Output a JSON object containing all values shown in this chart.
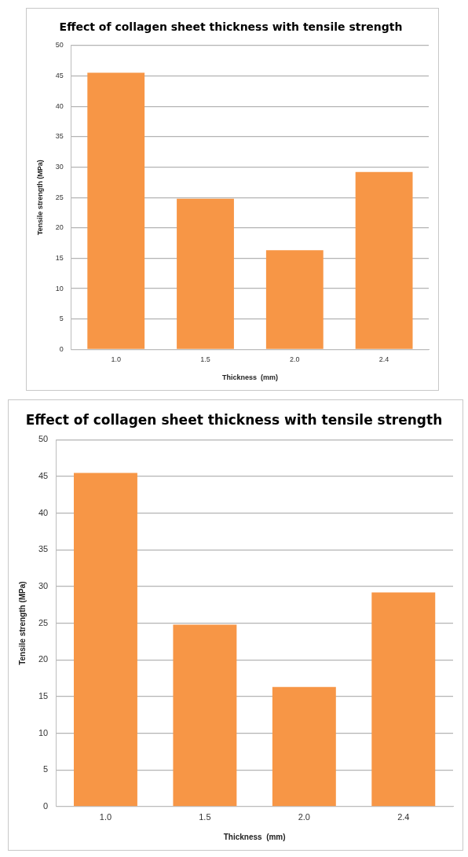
{
  "chart_data": [
    {
      "type": "bar",
      "title": "Effect of collagen sheet thickness with tensile strength",
      "xlabel": "Thickness  (mm)",
      "ylabel": "Tensile strength (MPa)",
      "categories": [
        "1.0",
        "1.5",
        "2.0",
        "2.4"
      ],
      "values": [
        45.5,
        24.8,
        16.3,
        29.2
      ],
      "color": "#f79646",
      "ylim": [
        0,
        50
      ],
      "yticks": [
        0,
        5,
        10,
        15,
        20,
        25,
        30,
        35,
        40,
        45,
        50
      ],
      "grid": "y",
      "legend": false
    },
    {
      "type": "bar",
      "title": "Effect of collagen sheet thickness with tensile strength",
      "xlabel": "Thickness  (mm)",
      "ylabel": "Tensile strength (MPa)",
      "categories": [
        "1.0",
        "1.5",
        "2.0",
        "2.4"
      ],
      "values": [
        45.5,
        24.8,
        16.3,
        29.2
      ],
      "color": "#f79646",
      "ylim": [
        0,
        50
      ],
      "yticks": [
        0,
        5,
        10,
        15,
        20,
        25,
        30,
        35,
        40,
        45,
        50
      ],
      "grid": "y",
      "legend": false
    }
  ]
}
